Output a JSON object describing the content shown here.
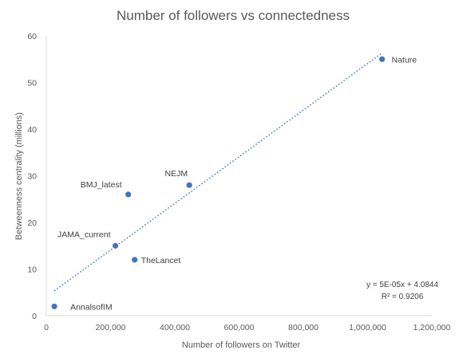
{
  "chart_data": {
    "type": "scatter",
    "title": "Number of followers vs connectedness",
    "xlabel": "Number of followers on Twitter",
    "ylabel": "Betweenness centrality (millions)",
    "xlim": [
      0,
      1200000
    ],
    "ylim": [
      0,
      60
    ],
    "x_ticks": [
      0,
      200000,
      400000,
      600000,
      800000,
      1000000,
      1200000
    ],
    "x_tick_labels": [
      "0",
      "200,000",
      "400,000",
      "600,000",
      "800,000",
      "1,000,000",
      "1,200,000"
    ],
    "y_ticks": [
      0,
      10,
      20,
      30,
      40,
      50,
      60
    ],
    "y_tick_labels": [
      "0",
      "10",
      "20",
      "30",
      "40",
      "50",
      "60"
    ],
    "grid": false,
    "point_color": "#4472c4",
    "trendline_color": "#4472c4",
    "points": [
      {
        "label": "Nature",
        "x": 1045000,
        "y": 55
      },
      {
        "label": "NEJM",
        "x": 445000,
        "y": 28
      },
      {
        "label": "BMJ_latest",
        "x": 255000,
        "y": 26
      },
      {
        "label": "JAMA_current",
        "x": 215000,
        "y": 15
      },
      {
        "label": "TheLancet",
        "x": 275000,
        "y": 12
      },
      {
        "label": "AnnalsofIM",
        "x": 25000,
        "y": 2
      }
    ],
    "trendline": {
      "type": "linear",
      "slope": 5e-05,
      "intercept": 4.0844,
      "x_range": [
        25000,
        1045000
      ],
      "equation": "y = 5E-05x + 4.0844",
      "r_squared": "R² = 0.9206"
    }
  }
}
